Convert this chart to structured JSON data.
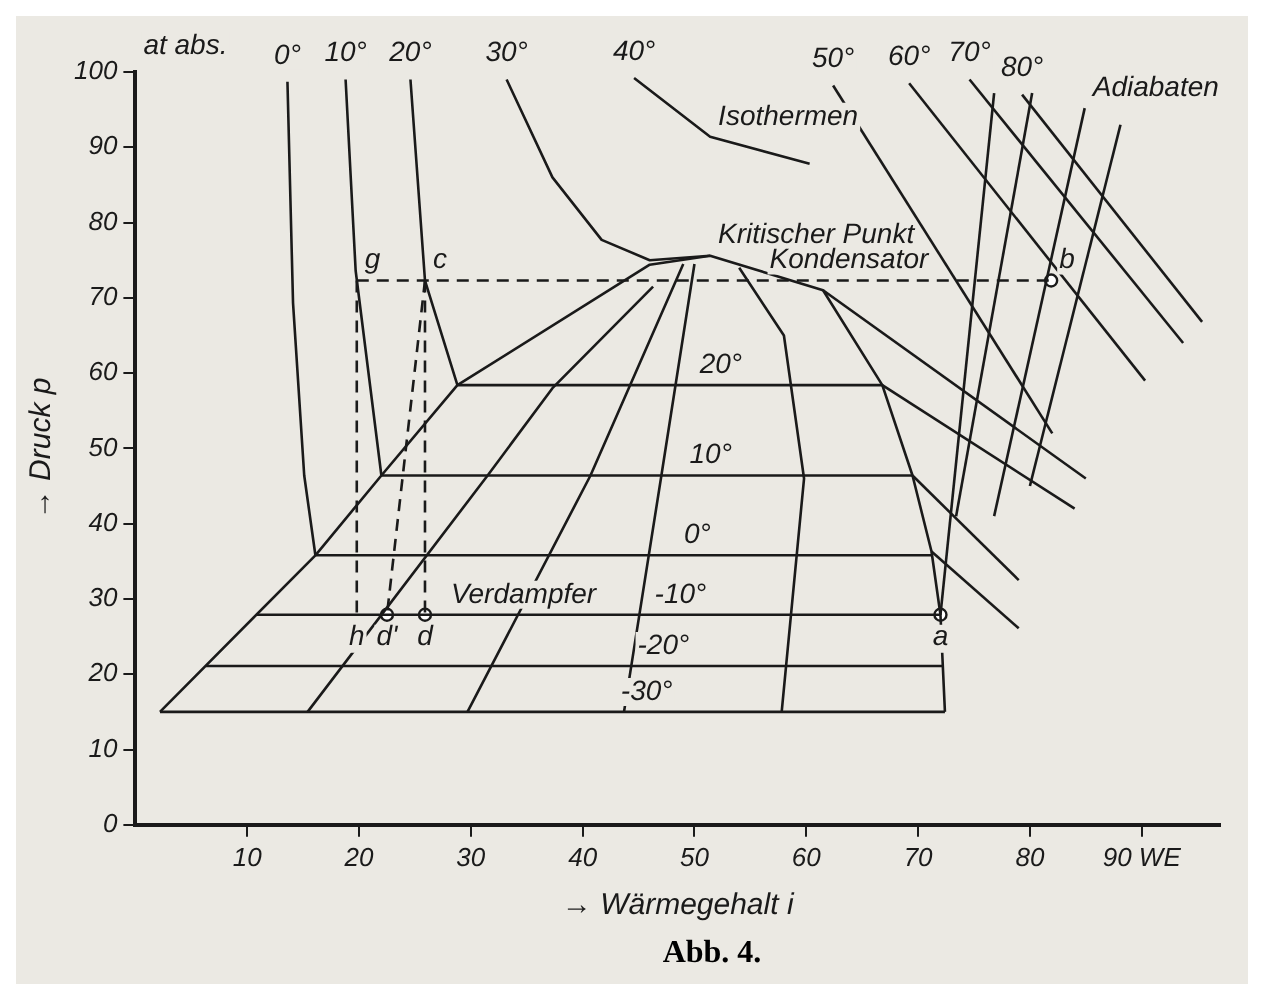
{
  "chart_data": {
    "type": "line",
    "xlabel": "→ Wärmegehalt i",
    "ylabel": "→ Druck p",
    "xlim": [
      0,
      97
    ],
    "ylim": [
      0,
      100
    ],
    "xticks": [
      10,
      20,
      30,
      40,
      50,
      60,
      70,
      80,
      {
        "value": 90,
        "label": "90 WE"
      }
    ],
    "yticks": [
      0,
      10,
      20,
      30,
      40,
      50,
      60,
      70,
      80,
      90,
      100
    ],
    "grid": false,
    "legend": false,
    "marker": "none",
    "line_style": "solid",
    "series": [
      {
        "color": "#1a1a1a",
        "x": [
          2.2,
          16.1,
          22,
          28.8,
          46,
          51.4,
          61.5,
          66.8,
          69.5,
          71.2,
          72,
          72.4
        ],
        "values": [
          15,
          35.8,
          46.4,
          58.4,
          74.4,
          75.6,
          71,
          58.4,
          46.4,
          36.3,
          27.9,
          15
        ]
      },
      {
        "name": "-30°",
        "color": "#1a1a1a",
        "x": [
          2.2,
          72.4
        ],
        "values": [
          15,
          15
        ]
      },
      {
        "name": "-20°",
        "color": "#1a1a1a",
        "x": [
          6.3,
          72.3
        ],
        "values": [
          21.1,
          21.1
        ]
      },
      {
        "name": "-10°",
        "color": "#1a1a1a",
        "x": [
          10.8,
          72
        ],
        "values": [
          27.9,
          27.9
        ]
      },
      {
        "name": "0°",
        "color": "#1a1a1a",
        "x": [
          16.1,
          71.2
        ],
        "values": [
          35.8,
          35.8
        ]
      },
      {
        "name": "10°",
        "color": "#1a1a1a",
        "x": [
          22,
          69.5
        ],
        "values": [
          46.4,
          46.4
        ]
      },
      {
        "name": "20°",
        "color": "#1a1a1a",
        "x": [
          28.8,
          66.8
        ],
        "values": [
          58.4,
          58.4
        ]
      },
      {
        "name": "0°",
        "color": "#1a1a1a",
        "x": [
          13.6,
          14.1,
          15.1,
          16.1
        ],
        "values": [
          98.7,
          69.3,
          46.4,
          35.8
        ]
      },
      {
        "name": "10°",
        "color": "#1a1a1a",
        "x": [
          18.8,
          19.7,
          22
        ],
        "values": [
          99,
          73.6,
          46.4
        ]
      },
      {
        "name": "20°",
        "color": "#1a1a1a",
        "x": [
          24.6,
          25.9,
          28.8
        ],
        "values": [
          99,
          72.3,
          58.4
        ]
      },
      {
        "name": "30°",
        "color": "#1a1a1a",
        "x": [
          33.2,
          37.3,
          41.7,
          46,
          51.4
        ],
        "values": [
          99,
          86,
          77.7,
          75,
          75.6
        ]
      },
      {
        "name": "40°",
        "color": "#1a1a1a",
        "x": [
          44.6,
          51.4,
          60.3
        ],
        "values": [
          99.2,
          91.4,
          87.8
        ]
      },
      {
        "name": "50°",
        "color": "#1a1a1a",
        "x": [
          62.4,
          82
        ],
        "values": [
          98.2,
          52
        ]
      },
      {
        "name": "60°",
        "color": "#1a1a1a",
        "x": [
          69.2,
          90.3
        ],
        "values": [
          98.5,
          59
        ]
      },
      {
        "name": "70°",
        "color": "#1a1a1a",
        "x": [
          74.6,
          93.7
        ],
        "values": [
          99,
          64
        ]
      },
      {
        "name": "80°",
        "color": "#1a1a1a",
        "x": [
          79.3,
          95.4
        ],
        "values": [
          97,
          66.8
        ]
      },
      {
        "color": "#1a1a1a",
        "x": [
          61.5,
          85
        ],
        "values": [
          71,
          46
        ]
      },
      {
        "color": "#1a1a1a",
        "x": [
          66.8,
          84
        ],
        "values": [
          58.4,
          42
        ]
      },
      {
        "color": "#1a1a1a",
        "x": [
          69.5,
          79
        ],
        "values": [
          46.4,
          32.5
        ]
      },
      {
        "color": "#1a1a1a",
        "x": [
          71.2,
          79
        ],
        "values": [
          36.3,
          26.1
        ]
      },
      {
        "color": "#1a1a1a",
        "x": [
          15.4,
          31.5,
          37.3,
          46.3
        ],
        "values": [
          15,
          46.4,
          58,
          71.5
        ]
      },
      {
        "color": "#1a1a1a",
        "x": [
          29.7,
          40.7,
          49
        ],
        "values": [
          15,
          46.4,
          74.5
        ]
      },
      {
        "color": "#1a1a1a",
        "x": [
          43.7,
          47,
          50
        ],
        "values": [
          15,
          46,
          74.5
        ]
      },
      {
        "color": "#1a1a1a",
        "x": [
          57.8,
          59.8,
          58,
          54
        ],
        "values": [
          15,
          46,
          65,
          74
        ]
      },
      {
        "color": "#1a1a1a",
        "x": [
          72,
          76.8
        ],
        "values": [
          27.9,
          97.2
        ]
      },
      {
        "color": "#1a1a1a",
        "x": [
          73.4,
          80.2
        ],
        "values": [
          41,
          97.2
        ]
      },
      {
        "color": "#1a1a1a",
        "x": [
          76.8,
          84.9
        ],
        "values": [
          41,
          95.2
        ]
      },
      {
        "color": "#1a1a1a",
        "x": [
          80,
          88.1
        ],
        "values": [
          45,
          93
        ]
      },
      {
        "color": "#1a1a1a",
        "line_style": "dashed",
        "x": [
          19.8,
          81.9
        ],
        "values": [
          72.3,
          72.3
        ]
      },
      {
        "color": "#1a1a1a",
        "line_style": "dashed",
        "x": [
          19.8,
          19.8
        ],
        "values": [
          72.3,
          27.9
        ]
      },
      {
        "color": "#1a1a1a",
        "line_style": "dashed",
        "x": [
          25.9,
          25.9
        ],
        "values": [
          72.3,
          27.9
        ]
      },
      {
        "color": "#1a1a1a",
        "line_style": "dashed",
        "x": [
          25.9,
          22.5
        ],
        "values": [
          72.3,
          27.9
        ]
      },
      {
        "type": "scatter",
        "marker": "circle",
        "color": "#1a1a1a",
        "x": [
          22.5,
          25.9,
          81.9,
          72
        ],
        "values": [
          27.9,
          27.9,
          72.3,
          27.9
        ]
      }
    ],
    "annotations": [
      "at abs.",
      {
        "text": "Adiabaten",
        "x": 84.9,
        "y": 95.2
      },
      {
        "text": "Isothermen",
        "x": 51.4,
        "y": 91.4
      },
      {
        "text": "Kritischer Punkt",
        "x": 51.4,
        "y": 75.6
      },
      {
        "text": "Kondensator",
        "x": 56,
        "y": 72.3
      },
      {
        "text": "Verdampfer",
        "x": 27.5,
        "y": 27.9
      },
      {
        "text": "g",
        "x": 19.8,
        "y": 72.3
      },
      {
        "text": "c",
        "x": 25.9,
        "y": 72.3
      },
      {
        "text": "b",
        "x": 81.9,
        "y": 72.3
      },
      {
        "text": "h",
        "x": 19.8,
        "y": 27.9
      },
      {
        "text": "d'",
        "x": 22.5,
        "y": 27.9
      },
      {
        "text": "d",
        "x": 25.9,
        "y": 27.9
      },
      {
        "text": "a",
        "x": 72,
        "y": 27.9
      },
      "Abb. 4."
    ]
  }
}
